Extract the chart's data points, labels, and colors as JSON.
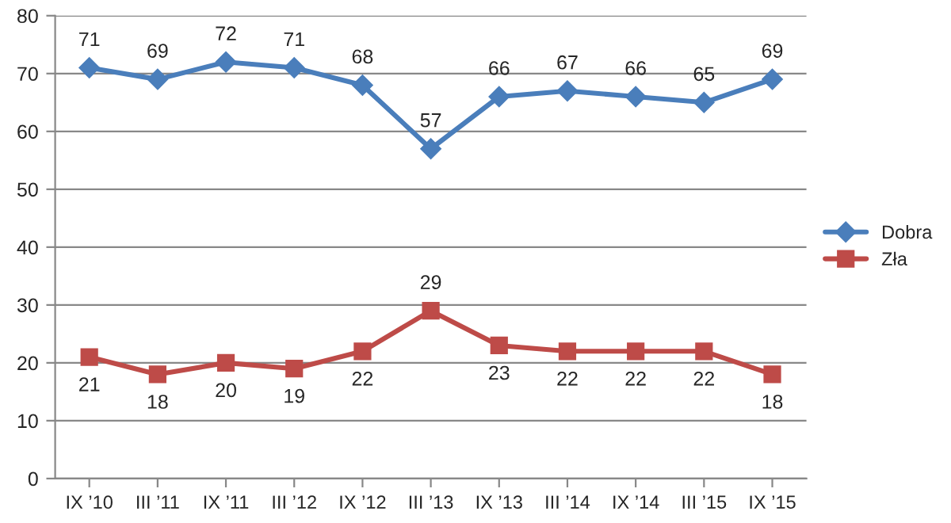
{
  "chart_data": {
    "type": "line",
    "categories": [
      "IX ’10",
      "III ’11",
      "IX ’11",
      "III ’12",
      "IX ’12",
      "III ’13",
      "IX ’13",
      "III ’14",
      "IX ’14",
      "III ’15",
      "IX ’15"
    ],
    "series": [
      {
        "name": "Dobra",
        "color": "#4a7ebb",
        "marker": "diamond",
        "values": [
          71,
          69,
          72,
          71,
          68,
          57,
          66,
          67,
          66,
          65,
          69
        ]
      },
      {
        "name": "Zła",
        "color": "#be4b48",
        "marker": "square",
        "values": [
          21,
          18,
          20,
          19,
          22,
          29,
          23,
          22,
          22,
          22,
          18
        ]
      }
    ],
    "ylim": [
      0,
      80
    ],
    "yticks": [
      0,
      10,
      20,
      30,
      40,
      50,
      60,
      70,
      80
    ],
    "grid": "y",
    "legend": "right",
    "data_labels": true
  }
}
